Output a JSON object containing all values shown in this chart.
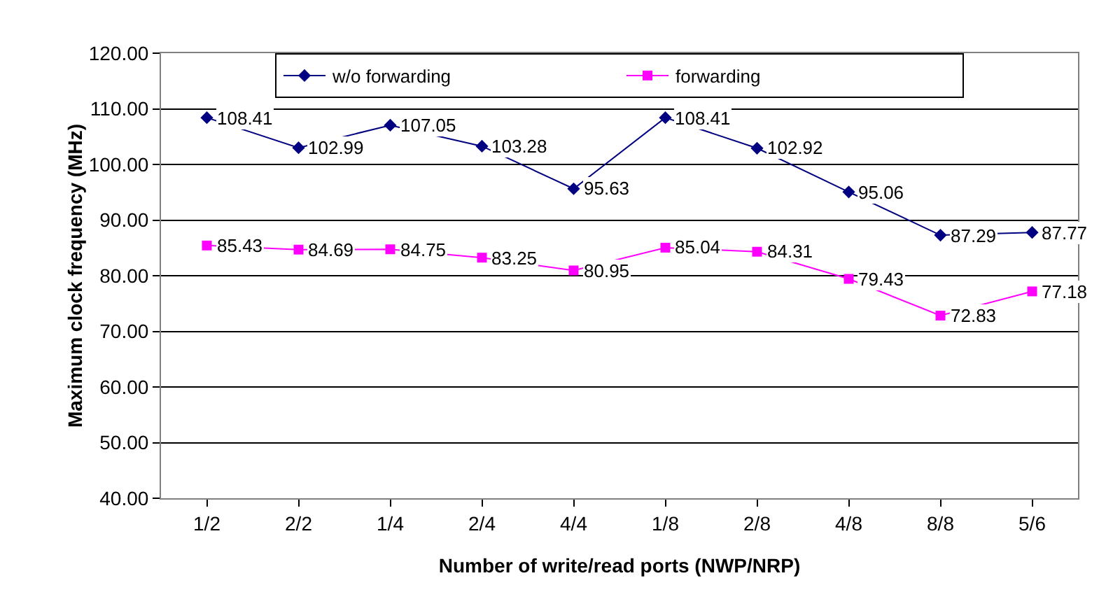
{
  "chart_data": {
    "type": "line",
    "xlabel": "Number of write/read ports (NWP/NRP)",
    "ylabel": "Maximum clock frequency (MHz)",
    "categories": [
      "1/2",
      "2/2",
      "1/4",
      "2/4",
      "4/4",
      "1/8",
      "2/8",
      "4/8",
      "8/8",
      "5/6"
    ],
    "series": [
      {
        "name": "w/o forwarding",
        "color": "#000080",
        "marker": "diamond",
        "values": [
          108.41,
          102.99,
          107.05,
          103.28,
          95.63,
          108.41,
          102.92,
          95.06,
          87.29,
          87.77
        ]
      },
      {
        "name": "forwarding",
        "color": "#ff00ff",
        "marker": "square",
        "values": [
          85.43,
          84.69,
          84.75,
          83.25,
          80.95,
          85.04,
          84.31,
          79.43,
          72.83,
          77.18
        ]
      }
    ],
    "ylim": [
      40,
      120
    ],
    "yticks": [
      {
        "value": 40,
        "label": "40.00"
      },
      {
        "value": 50,
        "label": "50.00"
      },
      {
        "value": 60,
        "label": "60.00"
      },
      {
        "value": 70,
        "label": "70.00"
      },
      {
        "value": 80,
        "label": "80.00"
      },
      {
        "value": 90,
        "label": "90.00"
      },
      {
        "value": 100,
        "label": "100.00"
      },
      {
        "value": 110,
        "label": "110.00"
      },
      {
        "value": 120,
        "label": "120.00"
      }
    ],
    "grid": "y",
    "legend": "top",
    "data_labels": true,
    "line_style": "solid"
  }
}
